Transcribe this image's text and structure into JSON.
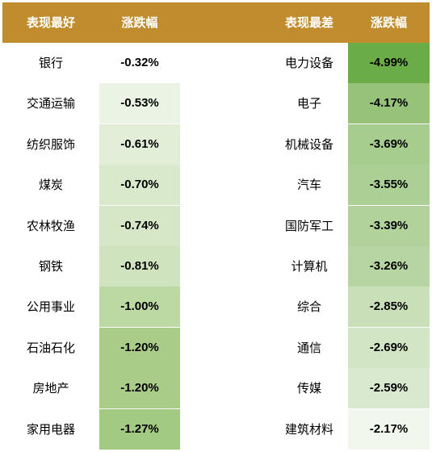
{
  "header": {
    "best_label": "表现最好",
    "best_change_label": "涨跌幅",
    "worst_label": "表现最差",
    "worst_change_label": "涨跌幅"
  },
  "best": [
    {
      "name": "银行",
      "change": "-0.32%",
      "color": "#ffffff"
    },
    {
      "name": "交通运输",
      "change": "-0.53%",
      "color": "#ebf3e4"
    },
    {
      "name": "纺织服饰",
      "change": "-0.61%",
      "color": "#e2eed8"
    },
    {
      "name": "煤炭",
      "change": "-0.70%",
      "color": "#d9e9cc"
    },
    {
      "name": "农林牧渔",
      "change": "-0.74%",
      "color": "#d5e7c6"
    },
    {
      "name": "钢铁",
      "change": "-0.81%",
      "color": "#cfe3bf"
    },
    {
      "name": "公用事业",
      "change": "-1.00%",
      "color": "#bcd9a3"
    },
    {
      "name": "石油石化",
      "change": "-1.20%",
      "color": "#a9cd89"
    },
    {
      "name": "房地产",
      "change": "-1.20%",
      "color": "#a9cd89"
    },
    {
      "name": "家用电器",
      "change": "-1.27%",
      "color": "#a3ca82"
    }
  ],
  "worst": [
    {
      "name": "电力设备",
      "change": "-4.99%",
      "color": "#6aac47"
    },
    {
      "name": "电子",
      "change": "-4.17%",
      "color": "#96c27a"
    },
    {
      "name": "机械设备",
      "change": "-3.69%",
      "color": "#a6cc8e"
    },
    {
      "name": "汽车",
      "change": "-3.55%",
      "color": "#abcf94"
    },
    {
      "name": "国防军工",
      "change": "-3.39%",
      "color": "#b1d29b"
    },
    {
      "name": "计算机",
      "change": "-3.26%",
      "color": "#b7d5a2"
    },
    {
      "name": "综合",
      "change": "-2.85%",
      "color": "#c8dfb8"
    },
    {
      "name": "通信",
      "change": "-2.69%",
      "color": "#d2e5c5"
    },
    {
      "name": "传媒",
      "change": "-2.59%",
      "color": "#d9e9cf"
    },
    {
      "name": "建筑材料",
      "change": "-2.17%",
      "color": "#f1f7ed"
    }
  ]
}
